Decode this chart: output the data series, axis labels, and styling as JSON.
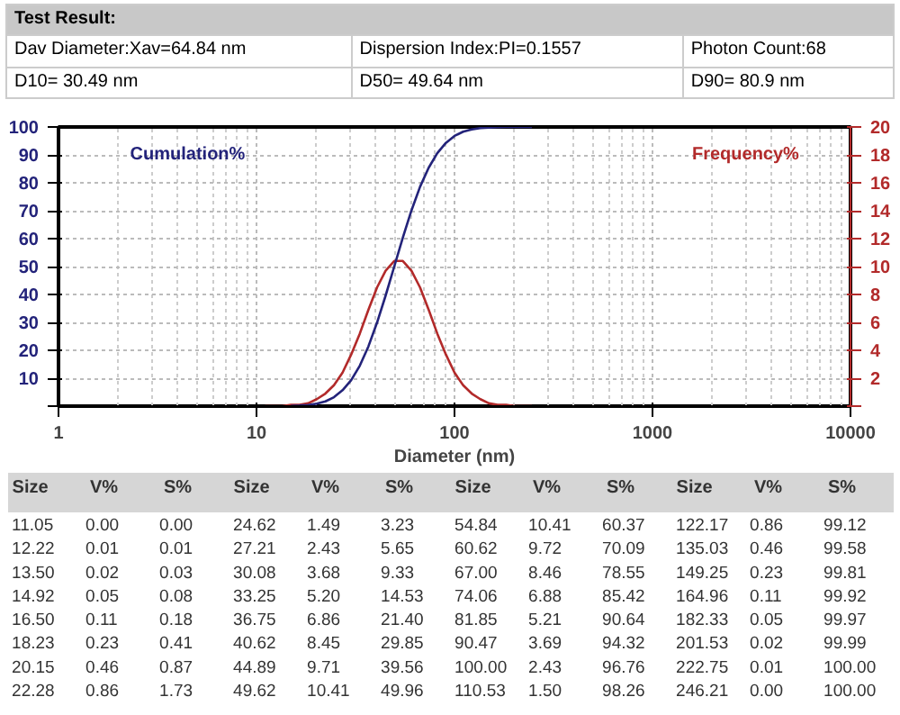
{
  "chart_data": [
    {
      "type": "line",
      "xlabel": "Diameter (nm)",
      "x": [
        11.05,
        12.22,
        13.5,
        14.92,
        16.5,
        18.23,
        20.15,
        22.28,
        24.62,
        27.21,
        30.08,
        33.25,
        36.75,
        40.62,
        44.89,
        49.62,
        54.84,
        60.62,
        67.0,
        74.06,
        81.85,
        90.47,
        100.0,
        110.53,
        122.17,
        135.03,
        149.25,
        164.96,
        182.33,
        201.53,
        222.75,
        246.21
      ],
      "series": [
        {
          "name": "Cumulation%",
          "color": "#23237a",
          "values": [
            null,
            null,
            null,
            0.1,
            0.2,
            0.4,
            0.9,
            1.7,
            3.2,
            5.7,
            9.3,
            14.5,
            21.4,
            29.9,
            39.6,
            50.0,
            60.4,
            70.1,
            78.6,
            85.4,
            90.6,
            94.3,
            96.8,
            98.3,
            99.1,
            99.6,
            99.8,
            99.9,
            100.0,
            100.0,
            100.0,
            100.0
          ]
        },
        {
          "name": "Frequency%",
          "color": "#b22a2a",
          "axis": "y2",
          "values": [
            0.0,
            0.0,
            0.0,
            0.1,
            0.1,
            0.2,
            0.5,
            0.9,
            1.5,
            2.4,
            3.7,
            5.2,
            6.9,
            8.5,
            9.7,
            10.4,
            10.4,
            9.7,
            8.5,
            6.9,
            5.2,
            3.7,
            2.4,
            1.5,
            0.9,
            0.5,
            0.2,
            0.1,
            0.1,
            0.0,
            0.0,
            0.0
          ]
        }
      ],
      "log": "x",
      "xlim": [
        1,
        10000
      ],
      "xticks": [
        1,
        10,
        100,
        1000,
        10000
      ],
      "ylim": [
        0,
        100
      ],
      "yticks": [
        {
          "value": 0,
          "label": null
        },
        10,
        20,
        30,
        40,
        50,
        60,
        70,
        80,
        90,
        100
      ],
      "y2lim": [
        0,
        20
      ],
      "y2ticks": [
        {
          "value": 0,
          "label": null
        },
        2,
        4,
        6,
        8,
        10,
        12,
        14,
        16,
        18,
        20
      ],
      "grid": true,
      "line_style": "solid",
      "annotations": [
        "Test Result:",
        "Dav Diameter:Xav=64.84 nm",
        "Dispersion Index:PI=0.1557",
        "Photon Count:68",
        "D10= 30.49 nm",
        "D50= 49.64 nm",
        "D90= 80.9 nm"
      ]
    },
    {
      "type": "heatmap",
      "categories": [
        "Size",
        "V%",
        "S%",
        "Size",
        "V%",
        "S%",
        "Size",
        "V%",
        "S%",
        "Size",
        "V%",
        "S%"
      ],
      "y_categories": [
        null,
        null,
        null,
        null,
        null,
        null,
        null,
        null
      ],
      "cells": [
        [
          11.05,
          0.0,
          0.0,
          24.62,
          1.49,
          3.23,
          54.84,
          10.41,
          60.37,
          122.17,
          0.86,
          99.12
        ],
        [
          12.22,
          0.01,
          0.01,
          27.21,
          2.43,
          5.65,
          60.62,
          9.72,
          70.09,
          135.03,
          0.46,
          99.58
        ],
        [
          13.5,
          0.02,
          0.03,
          30.08,
          3.68,
          9.33,
          67.0,
          8.46,
          78.55,
          149.25,
          0.23,
          99.81
        ],
        [
          14.92,
          0.05,
          0.08,
          33.25,
          5.2,
          14.53,
          74.06,
          6.88,
          85.42,
          164.96,
          0.11,
          99.92
        ],
        [
          16.5,
          0.11,
          0.18,
          36.75,
          6.86,
          21.4,
          81.85,
          5.21,
          90.64,
          182.33,
          0.05,
          99.97
        ],
        [
          18.23,
          0.23,
          0.41,
          40.62,
          8.45,
          29.85,
          90.47,
          3.69,
          94.32,
          201.53,
          0.02,
          99.99
        ],
        [
          20.15,
          0.46,
          0.87,
          44.89,
          9.71,
          39.56,
          100.0,
          2.43,
          96.76,
          222.75,
          0.01,
          100.0
        ],
        [
          22.28,
          0.86,
          1.73,
          49.62,
          10.41,
          49.96,
          110.53,
          1.5,
          98.26,
          246.21,
          0.0,
          100.0
        ]
      ],
      "cell_labels": [
        [
          "11.05",
          "0.00",
          "0.00",
          "24.62",
          "1.49",
          "3.23",
          "54.84",
          "10.41",
          "60.37",
          "122.17",
          "0.86",
          "99.12"
        ],
        [
          "12.22",
          "0.01",
          "0.01",
          "27.21",
          "2.43",
          "5.65",
          "60.62",
          "9.72",
          "70.09",
          "135.03",
          "0.46",
          "99.58"
        ],
        [
          "13.50",
          "0.02",
          "0.03",
          "30.08",
          "3.68",
          "9.33",
          "67.00",
          "8.46",
          "78.55",
          "149.25",
          "0.23",
          "99.81"
        ],
        [
          "14.92",
          "0.05",
          "0.08",
          "33.25",
          "5.20",
          "14.53",
          "74.06",
          "6.88",
          "85.42",
          "164.96",
          "0.11",
          "99.92"
        ],
        [
          "16.50",
          "0.11",
          "0.18",
          "36.75",
          "6.86",
          "21.40",
          "81.85",
          "5.21",
          "90.64",
          "182.33",
          "0.05",
          "99.97"
        ],
        [
          "18.23",
          "0.23",
          "0.41",
          "40.62",
          "8.45",
          "29.85",
          "90.47",
          "3.69",
          "94.32",
          "201.53",
          "0.02",
          "99.99"
        ],
        [
          "20.15",
          "0.46",
          "0.87",
          "44.89",
          "9.71",
          "39.56",
          "100.00",
          "2.43",
          "96.76",
          "222.75",
          "0.01",
          "100.00"
        ],
        [
          "22.28",
          "0.86",
          "1.73",
          "49.62",
          "10.41",
          "49.96",
          "110.53",
          "1.50",
          "98.26",
          "246.21",
          "0.00",
          "100.00"
        ]
      ],
      "data_labels": true
    }
  ]
}
